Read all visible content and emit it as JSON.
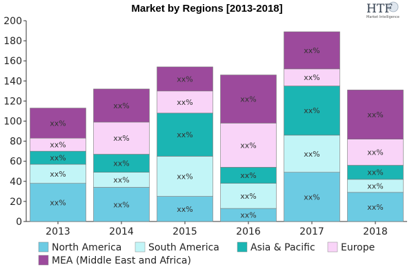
{
  "logo": {
    "text": "HTF",
    "subtitle": "Market Intelligence"
  },
  "chart_data": {
    "type": "bar",
    "stacked": true,
    "title": "Market by Regions [2013-2018]",
    "xlabel": "",
    "ylabel": "",
    "ylim": [
      0,
      200
    ],
    "yticks": [
      0,
      20,
      40,
      60,
      80,
      100,
      120,
      140,
      160,
      180,
      200
    ],
    "categories": [
      "2013",
      "2014",
      "2015",
      "2016",
      "2017",
      "2018"
    ],
    "data_label": "xx%",
    "legend_position": "bottom",
    "grid": false,
    "series": [
      {
        "name": "North America",
        "color": "#6ccbe3",
        "values": [
          38,
          34,
          25,
          13,
          49,
          29
        ]
      },
      {
        "name": "South America",
        "color": "#c2f5f7",
        "values": [
          19,
          15,
          40,
          25,
          37,
          13
        ]
      },
      {
        "name": "Asia & Pacific",
        "color": "#1bb5b3",
        "values": [
          13,
          18,
          43,
          16,
          49,
          14
        ]
      },
      {
        "name": "Europe",
        "color": "#f9d4f8",
        "values": [
          13,
          32,
          22,
          44,
          17,
          26
        ]
      },
      {
        "name": "MEA (Middle East and Africa)",
        "color": "#9c4a9c",
        "values": [
          30,
          33,
          24,
          48,
          37,
          49
        ]
      }
    ]
  }
}
